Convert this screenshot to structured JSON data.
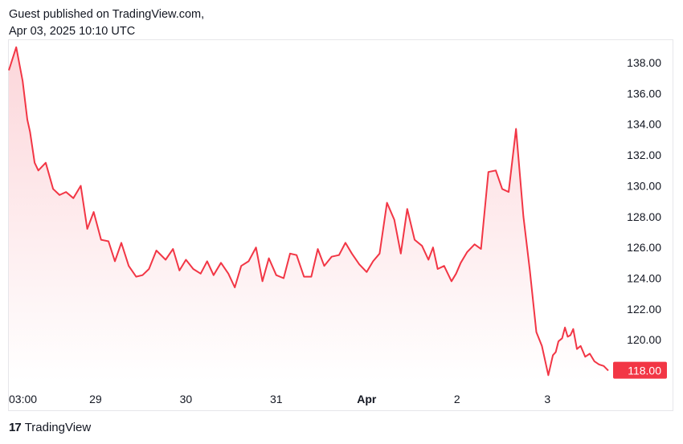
{
  "header": {
    "line1": "Guest published on TradingView.com,",
    "line2": "Apr 03, 2025 10:10 UTC"
  },
  "footer": {
    "brand_mark": "17",
    "brand_name": "TradingView"
  },
  "colors": {
    "line": "#f23645",
    "area_top": "#fcd6da",
    "area_bottom": "#ffffff",
    "badge": "#f23645"
  },
  "chart_data": {
    "type": "area",
    "x_tick_labels": [
      "03:00",
      "29",
      "30",
      "31",
      "Apr",
      "2",
      "3"
    ],
    "x_tick_bold": [
      false,
      false,
      false,
      false,
      true,
      false,
      false
    ],
    "y_ticks": [
      118,
      120,
      122,
      124,
      126,
      128,
      130,
      132,
      134,
      136,
      138
    ],
    "ylim": [
      117.3,
      139.2
    ],
    "last_value": "118.00",
    "x": [
      0.0,
      0.08,
      0.15,
      0.2,
      0.23,
      0.28,
      0.32,
      0.4,
      0.48,
      0.55,
      0.62,
      0.7,
      0.78,
      0.85,
      0.92,
      1.0,
      1.08,
      1.15,
      1.22,
      1.3,
      1.38,
      1.45,
      1.52,
      1.6,
      1.7,
      1.78,
      1.85,
      1.92,
      2.0,
      2.08,
      2.15,
      2.22,
      2.3,
      2.38,
      2.45,
      2.52,
      2.6,
      2.68,
      2.75,
      2.82,
      2.9,
      2.98,
      3.05,
      3.12,
      3.2,
      3.28,
      3.35,
      3.42,
      3.5,
      3.58,
      3.65,
      3.72,
      3.8,
      3.88,
      3.95,
      4.02,
      4.1,
      4.18,
      4.25,
      4.32,
      4.4,
      4.48,
      4.55,
      4.6,
      4.65,
      4.72,
      4.8,
      4.85,
      4.9,
      4.97,
      5.05,
      5.12,
      5.2,
      5.28,
      5.35,
      5.42,
      5.5,
      5.58,
      5.65,
      5.72,
      5.78,
      5.85,
      5.9,
      5.93,
      5.96,
      6.0,
      6.03,
      6.06,
      6.09,
      6.12,
      6.16,
      6.2,
      6.25,
      6.3,
      6.35,
      6.4,
      6.45,
      6.5
    ],
    "values": [
      137.5,
      139.0,
      136.8,
      134.3,
      133.5,
      131.5,
      131.0,
      131.5,
      129.8,
      129.4,
      129.6,
      129.2,
      130.0,
      127.2,
      128.3,
      126.5,
      126.4,
      125.1,
      126.3,
      124.8,
      124.1,
      124.2,
      124.6,
      125.8,
      125.2,
      125.9,
      124.5,
      125.2,
      124.6,
      124.3,
      125.1,
      124.2,
      125.0,
      124.3,
      123.4,
      124.8,
      125.1,
      126.0,
      123.8,
      125.3,
      124.2,
      124.0,
      125.6,
      125.5,
      124.1,
      124.1,
      125.9,
      124.8,
      125.4,
      125.5,
      126.3,
      125.6,
      124.9,
      124.4,
      125.1,
      125.6,
      128.9,
      127.8,
      125.6,
      128.5,
      126.5,
      126.1,
      125.2,
      126.0,
      124.6,
      124.8,
      123.8,
      124.3,
      125.0,
      125.7,
      126.2,
      125.9,
      130.9,
      131.0,
      129.8,
      129.6,
      133.7,
      128.0,
      124.5,
      120.5,
      119.6,
      117.7,
      119.0,
      119.2,
      119.9,
      120.1,
      120.8,
      120.2,
      120.3,
      120.7,
      119.4,
      119.6,
      118.9,
      119.1,
      118.6,
      118.4,
      118.3,
      118.0
    ],
    "x_tick_positions": [
      0,
      0.94,
      1.92,
      2.9,
      3.88,
      4.86,
      5.84
    ],
    "xlim": [
      0,
      6.5
    ]
  }
}
